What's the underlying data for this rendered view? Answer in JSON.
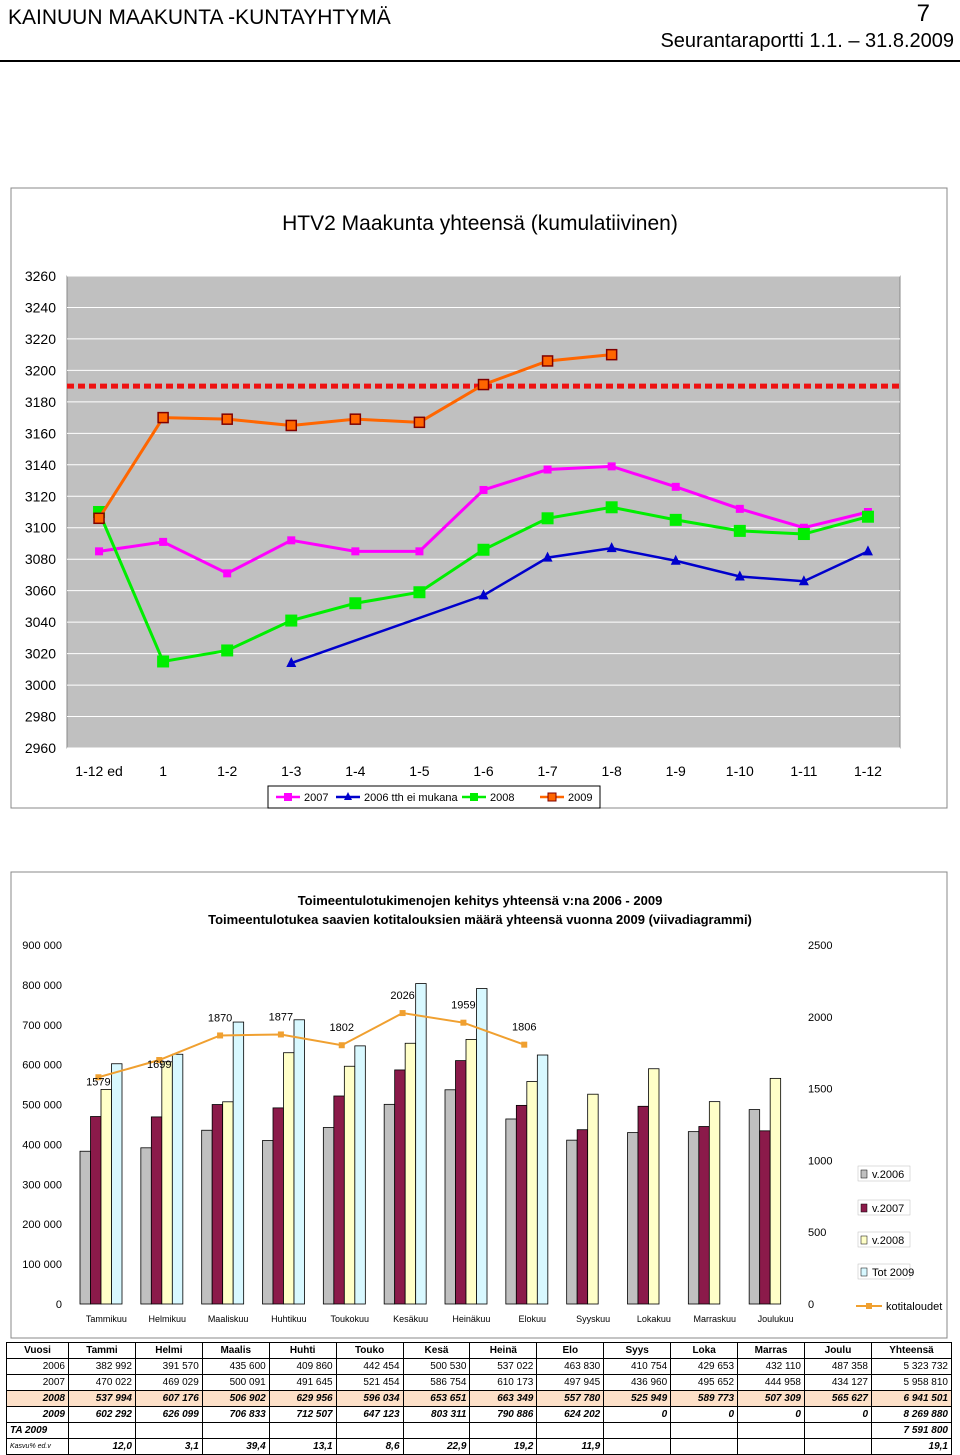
{
  "header": {
    "org": "KAINUUN MAAKUNTA -KUNTAYHTYMÄ",
    "page_number": "7",
    "report": "Seurantaraportti 1.1. – 31.8.2009"
  },
  "chart_data": [
    {
      "type": "line",
      "title": "HTV2 Maakunta yhteensä (kumulatiivinen)",
      "categories": [
        "1-12 ed",
        "1",
        "1-2",
        "1-3",
        "1-4",
        "1-5",
        "1-6",
        "1-7",
        "1-8",
        "1-9",
        "1-10",
        "1-11",
        "1-12"
      ],
      "ylim": [
        2960,
        3260
      ],
      "yticks": [
        2960,
        2980,
        3000,
        3020,
        3040,
        3060,
        3080,
        3100,
        3120,
        3140,
        3160,
        3180,
        3200,
        3220,
        3240,
        3260
      ],
      "reference_line": 3190,
      "legend_position": "bottom",
      "series": [
        {
          "name": "2007",
          "color": "#ff00ff",
          "marker": "square",
          "values": [
            3085,
            3091,
            3071,
            3092,
            3085,
            3085,
            3124,
            3137,
            3139,
            3126,
            3112,
            3100,
            3110
          ]
        },
        {
          "name": "2006 tth ei mukana",
          "color": "#0000cc",
          "marker": "triangle",
          "values": [
            null,
            null,
            null,
            3014,
            null,
            null,
            3057,
            3081,
            3087,
            3079,
            3069,
            3066,
            3085
          ]
        },
        {
          "name": "2008",
          "color": "#00ee00",
          "marker": "square",
          "values": [
            3110,
            3015,
            3022,
            3041,
            3052,
            3059,
            3086,
            3106,
            3113,
            3105,
            3098,
            3096,
            3107
          ]
        },
        {
          "name": "2009",
          "color": "#ff6600",
          "marker": "square",
          "values": [
            3106,
            3170,
            3169,
            3165,
            3169,
            3167,
            3191,
            3206,
            3210,
            null,
            null,
            null,
            null
          ]
        }
      ]
    },
    {
      "type": "bar",
      "title": "Toimeentulotukimenojen kehitys yhteensä v:na 2006 - 2009",
      "subtitle": "Toimeentulotukea saavien kotitalouksien määrä yhteensä vuonna 2009 (viivadiagrammi)",
      "categories": [
        "Tammikuu",
        "Helmikuu",
        "Maaliskuu",
        "Huhtikuu",
        "Toukokuu",
        "Kesäkuu",
        "Heinäkuu",
        "Elokuu",
        "Syyskuu",
        "Lokakuu",
        "Marraskuu",
        "Joulukuu"
      ],
      "ylim": [
        0,
        900000
      ],
      "yticks": [
        "0",
        "100 000",
        "200 000",
        "300 000",
        "400 000",
        "500 000",
        "600 000",
        "700 000",
        "800 000",
        "900 000"
      ],
      "y2lim": [
        0,
        2500
      ],
      "y2ticks": [
        "0",
        "500",
        "1000",
        "1500",
        "2000",
        "2500"
      ],
      "legend_position": "right",
      "series": [
        {
          "name": "v.2006",
          "color": "#c0c0c0",
          "values": [
            382992,
            391570,
            435600,
            409860,
            442454,
            500530,
            537022,
            463830,
            410754,
            429653,
            432110,
            487358
          ]
        },
        {
          "name": "v.2007",
          "color": "#8b1a4a",
          "values": [
            470022,
            469029,
            500091,
            491645,
            521454,
            586754,
            610173,
            497945,
            436960,
            495652,
            444958,
            434127
          ]
        },
        {
          "name": "v.2008",
          "color": "#ffffc8",
          "values": [
            537994,
            607176,
            506902,
            629956,
            596034,
            653651,
            663349,
            557780,
            525949,
            589773,
            507309,
            565627
          ]
        },
        {
          "name": "Tot 2009",
          "color": "#d8f8ff",
          "values": [
            602292,
            626099,
            706833,
            712507,
            647123,
            803311,
            790886,
            624202,
            null,
            null,
            null,
            null
          ]
        },
        {
          "name": "kotitaloudet",
          "color": "#f0a030",
          "axis": "right",
          "values": [
            1579,
            1699,
            1870,
            1877,
            1802,
            2026,
            1959,
            1806,
            null,
            null,
            null,
            null
          ]
        }
      ],
      "line_labels": [
        "1579",
        "1699",
        "1870",
        "1877",
        "1802",
        "2026",
        "1959",
        "1806"
      ]
    }
  ],
  "table": {
    "headers": [
      "Vuosi",
      "Tammi",
      "Helmi",
      "Maalis",
      "Huhti",
      "Touko",
      "Kesä",
      "Heinä",
      "Elo",
      "Syys",
      "Loka",
      "Marras",
      "Joulu",
      "Yhteensä"
    ],
    "rows": [
      {
        "key": "2006",
        "cells": [
          "2006",
          "382 992",
          "391 570",
          "435 600",
          "409 860",
          "442 454",
          "500 530",
          "537 022",
          "463 830",
          "410 754",
          "429 653",
          "432 110",
          "487 358",
          "5 323 732"
        ]
      },
      {
        "key": "2007",
        "cells": [
          "2007",
          "470 022",
          "469 029",
          "500 091",
          "491 645",
          "521 454",
          "586 754",
          "610 173",
          "497 945",
          "436 960",
          "495 652",
          "444 958",
          "434 127",
          "5 958 810"
        ]
      },
      {
        "key": "2008",
        "cells": [
          "2008",
          "537 994",
          "607 176",
          "506 902",
          "629 956",
          "596 034",
          "653 651",
          "663 349",
          "557 780",
          "525 949",
          "589 773",
          "507 309",
          "565 627",
          "6 941 501"
        ]
      },
      {
        "key": "2009",
        "cells": [
          "2009",
          "602 292",
          "626 099",
          "706 833",
          "712 507",
          "647 123",
          "803 311",
          "790 886",
          "624 202",
          "0",
          "0",
          "0",
          "0",
          "8 269 880"
        ]
      },
      {
        "key": "ta",
        "cells": [
          "TA 2009",
          "",
          "",
          "",
          "",
          "",
          "",
          "",
          "",
          "",
          "",
          "",
          "",
          "7 591 800"
        ]
      },
      {
        "key": "kasvu",
        "cells": [
          "Kasvu% ed.v",
          "12,0",
          "3,1",
          "39,4",
          "13,1",
          "8,6",
          "22,9",
          "19,2",
          "11,9",
          "",
          "",
          "",
          "",
          "19,1"
        ]
      }
    ]
  }
}
